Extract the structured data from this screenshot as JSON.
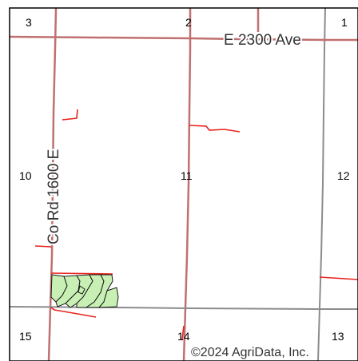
{
  "map": {
    "section_labels": {
      "s3": "3",
      "s2": "2",
      "s1": "1",
      "s10": "10",
      "s11": "11",
      "s12": "12",
      "s15": "15",
      "s14": "14",
      "s13": "13"
    },
    "roads": {
      "east_west": "E 2300 Ave",
      "north_south": "Co Rd 1600 E"
    },
    "copyright": "©2024 AgriData, Inc.",
    "colors": {
      "road": "#c0504d",
      "section_line_gray": "#8c8c8c",
      "boundary_red": "#e8231d",
      "field_fill": "#c8f0b4",
      "field_stroke": "#1a1a1a",
      "frame": "#000000"
    }
  }
}
